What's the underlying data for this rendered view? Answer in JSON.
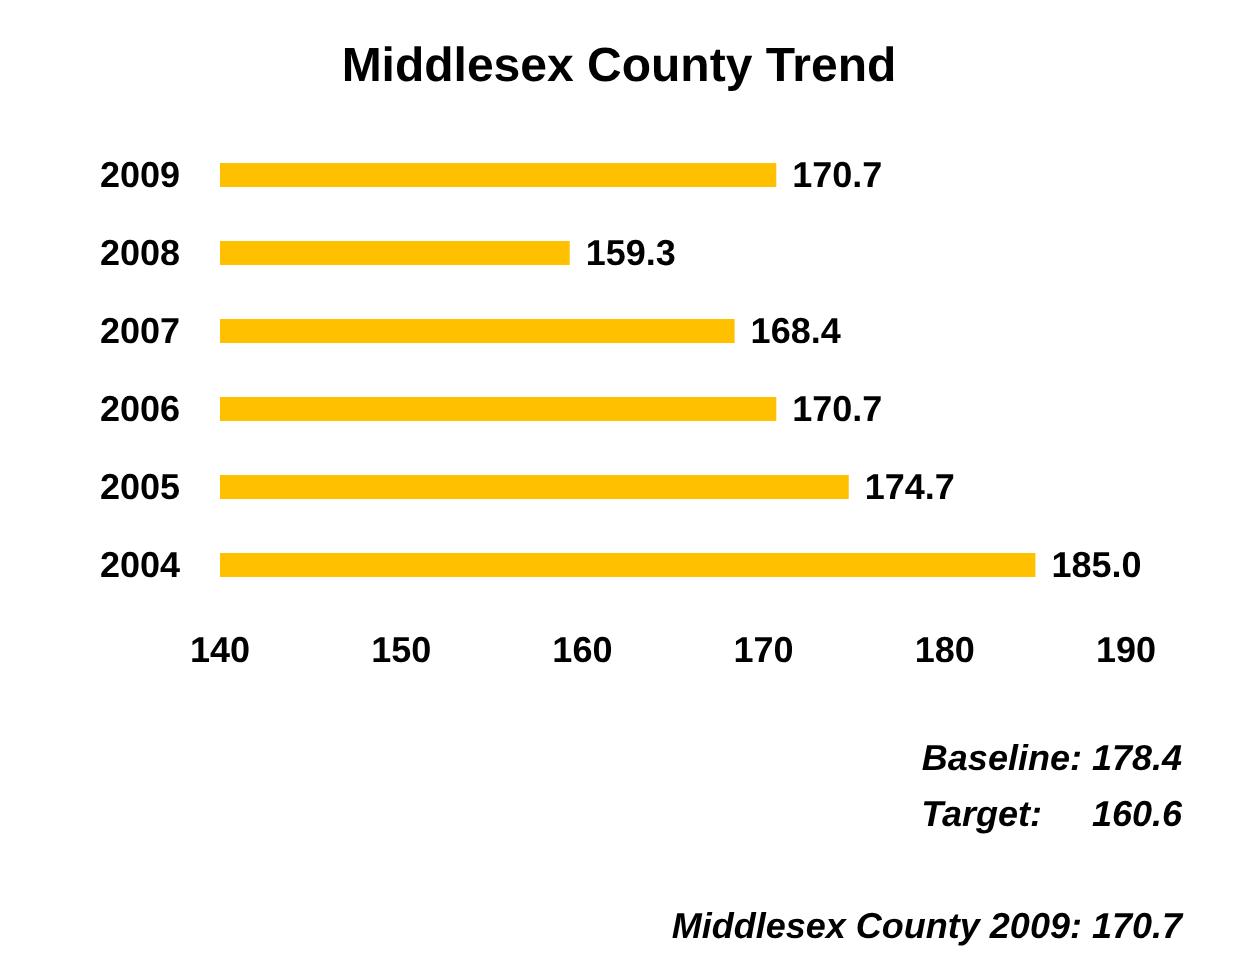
{
  "chart_data": {
    "type": "bar",
    "orientation": "horizontal",
    "title": "Middlesex County Trend",
    "categories": [
      "2009",
      "2008",
      "2007",
      "2006",
      "2005",
      "2004"
    ],
    "values": [
      170.7,
      159.3,
      168.4,
      170.7,
      174.7,
      185.0
    ],
    "value_labels": [
      "170.7",
      "159.3",
      "168.4",
      "170.7",
      "174.7",
      "185.0"
    ],
    "color": "#ffc000",
    "xlim": [
      140,
      190
    ],
    "xticks": [
      140,
      150,
      160,
      170,
      180,
      190
    ],
    "grid": false,
    "annotations": [
      "Baseline: 178.4",
      "Target:     160.6",
      "Middlesex County 2009: 170.7"
    ]
  }
}
